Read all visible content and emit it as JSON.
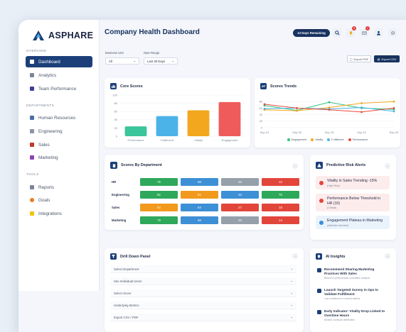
{
  "app": {
    "name": "ASPHARE"
  },
  "sidebar": {
    "overview_label": "OVERVIEW",
    "departments_label": "DEPARTMENTS",
    "tools_label": "TOOLS",
    "overview": [
      {
        "label": "Dashboard",
        "active": true,
        "icon": "dashboard-icon",
        "color": "#ffffff"
      },
      {
        "label": "Analytics",
        "icon": "analytics-icon",
        "color": "#7a869a"
      },
      {
        "label": "Team Performance",
        "icon": "team-icon",
        "color": "#3b3f9e"
      }
    ],
    "departments": [
      {
        "label": "Human Resources",
        "icon": "hr-icon",
        "color": "#4a6fa5"
      },
      {
        "label": "Engineering",
        "icon": "engineering-icon",
        "color": "#8a94a6"
      },
      {
        "label": "Sales",
        "icon": "sales-icon",
        "color": "#c0392b"
      },
      {
        "label": "Marketing",
        "icon": "marketing-icon",
        "color": "#8e44ad"
      }
    ],
    "tools": [
      {
        "label": "Reports",
        "icon": "reports-icon",
        "color": "#7a869a"
      },
      {
        "label": "Goals",
        "icon": "goals-icon",
        "color": "#e67e22"
      },
      {
        "label": "Integrations",
        "icon": "integrations-icon",
        "color": "#f1c40f"
      }
    ]
  },
  "header": {
    "title": "Company Health Dashboard",
    "days_remaining": "13 Days Remaining",
    "notifications_count": "3",
    "messages_count": "1"
  },
  "filters": {
    "business_unit_label": "Business Unit",
    "business_unit_value": "All",
    "date_range_label": "Date Range",
    "date_range_value": "Last 30 Days",
    "export_pdf": "Export PDF",
    "export_csv": "Export CSV"
  },
  "core_scores": {
    "title": "Core Scores",
    "chart_data": {
      "type": "bar",
      "categories": [
        "Performance",
        "Fulfillment",
        "Vitality",
        "Engagement"
      ],
      "values": [
        24,
        49,
        63,
        83
      ],
      "colors": [
        "#3cc49a",
        "#4cb3e8",
        "#f2a71e",
        "#ef5b5b"
      ],
      "ylim": [
        0,
        100
      ],
      "yticks": [
        "0",
        "20",
        "40",
        "60",
        "80",
        "100"
      ]
    }
  },
  "score_trends": {
    "title": "Scores Trends",
    "chart_data": {
      "type": "line",
      "x": [
        "Sep 01",
        "Sep 08",
        "Sep 15",
        "Sep 22",
        "Sep 29"
      ],
      "ylim": [
        0,
        100
      ],
      "yticks": [
        "0",
        "20",
        "40",
        "60",
        "80"
      ],
      "series": [
        {
          "name": "Engagement",
          "color": "#2ec27e",
          "values": [
            68,
            53,
            78,
            60,
            56
          ]
        },
        {
          "name": "Vitality",
          "color": "#f2a71e",
          "values": [
            55,
            52,
            62,
            75,
            80
          ]
        },
        {
          "name": "Fulfillment",
          "color": "#4cb3e8",
          "values": [
            58,
            60,
            57,
            62,
            50
          ]
        },
        {
          "name": "Performance",
          "color": "#e74c3c",
          "values": [
            72,
            60,
            55,
            48,
            60
          ]
        }
      ]
    }
  },
  "dept_scores": {
    "title": "Scores By Department",
    "rows": [
      {
        "label": "HR",
        "cells": [
          {
            "v": "75",
            "c": "#2ea85a"
          },
          {
            "v": "58",
            "c": "#3d8fd6"
          },
          {
            "v": "32",
            "c": "#95a0ab"
          },
          {
            "v": "12",
            "c": "#e2463b"
          }
        ]
      },
      {
        "label": "Engineering",
        "cells": [
          {
            "v": "82",
            "c": "#2ea85a"
          },
          {
            "v": "61",
            "c": "#f29a1e"
          },
          {
            "v": "43",
            "c": "#3d8fd6"
          },
          {
            "v": "75",
            "c": "#2ea85a"
          }
        ]
      },
      {
        "label": "Sales",
        "cells": [
          {
            "v": "64",
            "c": "#f29a1e"
          },
          {
            "v": "54",
            "c": "#3d8fd6"
          },
          {
            "v": "27",
            "c": "#e2463b"
          },
          {
            "v": "18",
            "c": "#e2463b"
          }
        ]
      },
      {
        "label": "Marketing",
        "cells": [
          {
            "v": "79",
            "c": "#2ea85a"
          },
          {
            "v": "56",
            "c": "#3d8fd6"
          },
          {
            "v": "33",
            "c": "#95a0ab"
          },
          {
            "v": "14",
            "c": "#e2463b"
          }
        ]
      }
    ]
  },
  "risk_alerts": {
    "title": "Predictive Risk Alerts",
    "items": [
      {
        "title": "Vitality in Sales Trending -15%",
        "sub": "(High Risk)",
        "bg": "#fdecec",
        "dot": "#e2463b"
      },
      {
        "title": "Performance Below Threshold in HR (10)",
        "sub": "(Critical)",
        "bg": "#fdecec",
        "dot": "#e2463b"
      },
      {
        "title": "Engagement Plateau in Marketing",
        "sub": "(Attention Needed)",
        "bg": "#eaf3fc",
        "dot": "#3d8fd6"
      }
    ]
  },
  "drill_down": {
    "title": "Drill Down Panel",
    "rows": [
      "Select Department",
      "See Individual Users",
      "Select Score",
      "Underlying Metrics",
      "Export CSV / PDF"
    ]
  },
  "ai_insights": {
    "title": "AI Insights",
    "items": [
      {
        "title": "Recommend Sharing Marketing Practices With Sales",
        "sub": "Based on performance correlation analysis"
      },
      {
        "title": "Launch Targeted Survey in Ops to Validate Fulfillment",
        "sub": "Low confidence in current metrics"
      },
      {
        "title": "Early Indicator: Vitality Drop Linked to Overtime Hours",
        "sub": "Monitor workload distribution"
      }
    ]
  }
}
